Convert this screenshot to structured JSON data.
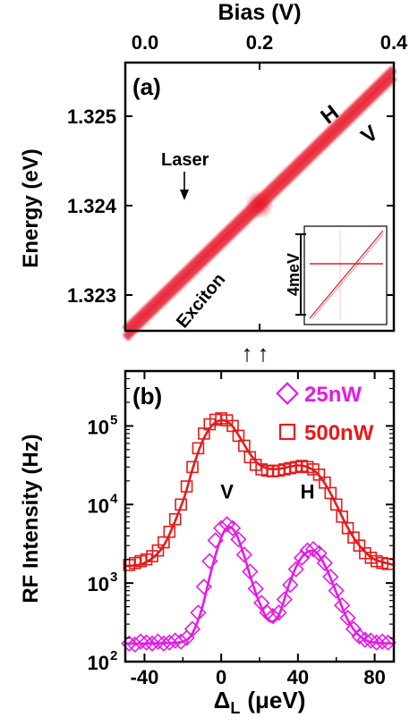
{
  "chart_data": [
    {
      "type": "heatmap",
      "panel_label": "(a)",
      "title": "Bias (V)",
      "xlabel": "Bias (V)",
      "ylabel": "Energy (eV)",
      "xlim": [
        0.0,
        0.4
      ],
      "ylim": [
        1.3226,
        1.3256
      ],
      "x_ticks": [
        0.0,
        0.2,
        0.4
      ],
      "x_tick_labels": [
        "0.0",
        "0.2",
        "0.4"
      ],
      "y_ticks": [
        1.323,
        1.324,
        1.325
      ],
      "y_tick_labels": [
        "1.323",
        "1.324",
        "1.325"
      ],
      "colors": {
        "map": "#e8182a",
        "bg": "#ffffff"
      },
      "lines": [
        {
          "name": "H",
          "x": [
            0.0,
            0.4
          ],
          "y": [
            1.32261,
            1.32553
          ]
        },
        {
          "name": "V",
          "x": [
            0.0,
            0.4
          ],
          "y": [
            1.32252,
            1.32544
          ]
        },
        {
          "name": "Laser",
          "x": [
            0.0,
            0.4
          ],
          "y": [
            1.32405,
            1.32405
          ]
        },
        {
          "name": "",
          "x": [
            0.2,
            0.2
          ],
          "y": [
            1.3226,
            1.3256
          ]
        }
      ],
      "annotations": [
        "Laser",
        "H",
        "V",
        "Exciton"
      ],
      "inset": {
        "label": "4meV"
      }
    },
    {
      "type": "scatter",
      "panel_label": "(b)",
      "xlabel": "Δ",
      "xlabel_sub": "L",
      "xlabel_unit": "(μeV)",
      "ylabel": "RF Intensity (Hz)",
      "xlim": [
        -50,
        90
      ],
      "y_log": true,
      "ylim": [
        100,
        500000
      ],
      "x_ticks": [
        -40,
        0,
        40,
        80
      ],
      "x_tick_labels": [
        "-40",
        "0",
        "40",
        "80"
      ],
      "y_ticks": [
        100,
        1000,
        10000,
        100000
      ],
      "y_tick_labels": [
        [
          "10",
          "2"
        ],
        [
          "10",
          "3"
        ],
        [
          "10",
          "4"
        ],
        [
          "10",
          "5"
        ]
      ],
      "peak_labels": [
        {
          "text": "V",
          "x": 3,
          "y": 12000
        },
        {
          "text": "H",
          "x": 45,
          "y": 12000
        }
      ],
      "series": [
        {
          "name": "25nW",
          "marker": "diamond",
          "color": "#e619e6",
          "x": [
            -48,
            -45,
            -42,
            -39,
            -36,
            -33,
            -30,
            -27,
            -24,
            -21,
            -18,
            -15,
            -12,
            -9,
            -6,
            -3,
            0,
            3,
            6,
            9,
            12,
            15,
            18,
            21,
            24,
            27,
            30,
            33,
            36,
            39,
            42,
            45,
            48,
            51,
            54,
            57,
            60,
            63,
            66,
            69,
            72,
            75,
            78,
            81,
            84,
            87
          ],
          "y": [
            170,
            165,
            180,
            175,
            170,
            180,
            170,
            175,
            185,
            180,
            200,
            260,
            420,
            900,
            1900,
            3500,
            5000,
            5600,
            5000,
            3600,
            2300,
            1400,
            850,
            560,
            420,
            380,
            420,
            620,
            950,
            1500,
            2100,
            2600,
            2700,
            2400,
            1800,
            1200,
            800,
            520,
            360,
            260,
            210,
            190,
            185,
            175,
            180,
            175
          ],
          "fit_x": [
            -50,
            -40,
            -30,
            -20,
            -15,
            -10,
            -5,
            0,
            4,
            8,
            12,
            16,
            20,
            25,
            30,
            35,
            40,
            45,
            50,
            55,
            60,
            65,
            70,
            75,
            80,
            90
          ],
          "fit_y": [
            170,
            170,
            172,
            180,
            230,
            480,
            1500,
            3800,
            5200,
            4100,
            2200,
            1050,
            560,
            330,
            390,
            900,
            1800,
            2500,
            2400,
            1500,
            760,
            380,
            240,
            190,
            175,
            170
          ]
        },
        {
          "name": "500nW",
          "marker": "square",
          "color": "#e61a1a",
          "x": [
            -48,
            -45,
            -42,
            -39,
            -36,
            -33,
            -30,
            -27,
            -24,
            -21,
            -18,
            -15,
            -12,
            -9,
            -6,
            -3,
            0,
            3,
            6,
            9,
            12,
            15,
            18,
            21,
            24,
            27,
            30,
            33,
            36,
            39,
            42,
            45,
            48,
            51,
            54,
            57,
            60,
            63,
            66,
            69,
            72,
            75,
            78,
            81,
            84,
            87
          ],
          "y": [
            1700,
            1800,
            1900,
            2000,
            2200,
            2600,
            3300,
            4500,
            6500,
            10000,
            17000,
            30000,
            52000,
            80000,
            105000,
            120000,
            125000,
            118000,
            100000,
            75000,
            56000,
            40000,
            32000,
            28000,
            27000,
            26500,
            27000,
            28000,
            29000,
            30000,
            31000,
            30000,
            28000,
            24000,
            19000,
            14000,
            10000,
            7000,
            5000,
            3800,
            3000,
            2400,
            2100,
            1900,
            1800,
            1750
          ],
          "fit_x": [
            -50,
            -40,
            -30,
            -20,
            -15,
            -10,
            -5,
            0,
            5,
            10,
            15,
            20,
            25,
            30,
            35,
            40,
            45,
            50,
            55,
            60,
            65,
            70,
            75,
            80,
            90
          ],
          "fit_y": [
            1650,
            1800,
            3000,
            11000,
            28000,
            62000,
            100000,
            118000,
            105000,
            70000,
            44000,
            32000,
            28500,
            28500,
            30000,
            31500,
            30000,
            25000,
            17000,
            10000,
            5600,
            3500,
            2500,
            2000,
            1700
          ]
        }
      ],
      "legend": {
        "placement": "top-right",
        "entries": [
          "25nW",
          "500nW"
        ]
      },
      "arrows_between_panels": [
        "↑",
        "↑"
      ]
    }
  ]
}
